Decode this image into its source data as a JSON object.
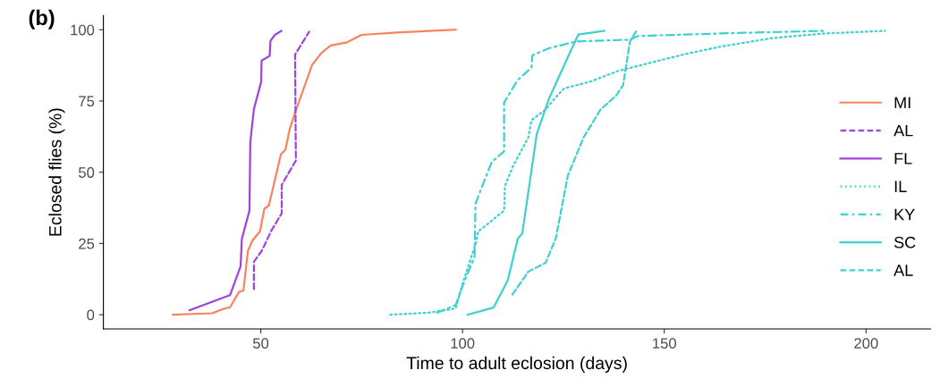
{
  "chart_data": {
    "type": "line",
    "title": "(b)",
    "xlabel": "Time to adult eclosion (days)",
    "ylabel": "Eclosed flies (%)",
    "xlim": [
      11,
      216
    ],
    "ylim": [
      -5,
      105
    ],
    "xticks": [
      50,
      100,
      150,
      200
    ],
    "yticks": [
      0,
      25,
      50,
      75,
      100
    ],
    "grid": false,
    "legend": "right",
    "marker": "none",
    "series": [
      {
        "name": "MI",
        "color": "#f8845f",
        "line_style": "solid",
        "x": [
          28.2,
          37.9,
          40.9,
          42.4,
          44.6,
          45.7,
          46.8,
          47.9,
          49.8,
          50.9,
          52,
          55,
          56.1,
          57.2,
          58.7,
          62.7,
          65,
          67.3,
          71.4,
          75,
          83.8,
          98.3
        ],
        "values": [
          0,
          0.5,
          2.1,
          2.6,
          8,
          8.5,
          22.3,
          26,
          29.2,
          37.2,
          38.3,
          56.3,
          57.9,
          65.3,
          71.7,
          87.6,
          91.8,
          94.5,
          95.6,
          98.2,
          99,
          100
        ]
      },
      {
        "name": "AL",
        "color": "#9d45dc",
        "line_style": "dashed",
        "x": [
          48.3,
          48.3,
          50.2,
          52.7,
          55.2,
          55.2,
          58.7,
          58.5,
          62
        ],
        "values": [
          9,
          18.6,
          22.3,
          29.7,
          35.6,
          45.6,
          54.1,
          91.3,
          99.3
        ]
      },
      {
        "name": "FL",
        "color": "#9d45dc",
        "line_style": "solid",
        "x": [
          32.4,
          42.4,
          45,
          45.3,
          47.2,
          47.4,
          48.3,
          50.1,
          50.2,
          52.2,
          52.4,
          53.5,
          55.1
        ],
        "values": [
          1.6,
          6.9,
          17,
          26.5,
          36.6,
          60.5,
          72.2,
          81.7,
          89.2,
          90.8,
          96.1,
          98.2,
          99.6
        ]
      },
      {
        "name": "IL",
        "color": "#3fd0d0",
        "line_style": "dotted",
        "x": [
          82.1,
          91.5,
          98.3,
          100,
          103.4,
          103.8,
          110.3,
          110.5,
          112.4,
          116.3,
          117.1,
          120.6,
          123.1,
          125.2,
          131.7,
          138.5,
          147.1,
          155.6,
          164.1,
          176.9,
          189.8,
          204.7
        ],
        "values": [
          0,
          0.7,
          2.2,
          10.8,
          25.5,
          29.1,
          36.5,
          45.1,
          51.8,
          62.2,
          68.3,
          72,
          76.3,
          79.4,
          81.8,
          85.5,
          88.6,
          91.6,
          94.1,
          97.1,
          98.7,
          99.6
        ]
      },
      {
        "name": "KY",
        "color": "#3fd0d0",
        "line_style": "dashdot",
        "x": [
          93.7,
          98.3,
          100.2,
          103,
          103.2,
          105.2,
          107.3,
          110.3,
          110.3,
          113.7,
          117.1,
          117.3,
          121.4,
          128.2,
          141.5,
          143.5,
          164.1,
          189.8
        ],
        "values": [
          0.7,
          3.4,
          10.8,
          20.4,
          38.9,
          46.3,
          53.7,
          57.3,
          74.5,
          82.4,
          86.7,
          91,
          93.5,
          95.9,
          96.5,
          97.8,
          98.7,
          99.6
        ]
      },
      {
        "name": "SC",
        "color": "#3fd0d0",
        "line_style": "solid",
        "x": [
          101.3,
          107.7,
          111.2,
          113.7,
          114.8,
          118.4,
          121.4,
          126.5,
          128.7,
          135.1
        ],
        "values": [
          0,
          2.5,
          12,
          26.7,
          28.5,
          63.4,
          75.7,
          91.6,
          98.3,
          99.6
        ]
      },
      {
        "name": "AL",
        "color": "#3fd0d0",
        "line_style": "dashed",
        "x": [
          112.4,
          116.3,
          120.6,
          123.1,
          126.1,
          130,
          134.2,
          138.1,
          139.8,
          141.5,
          143.1
        ],
        "values": [
          7.1,
          15.1,
          18.2,
          26.7,
          48.8,
          62.2,
          72,
          76.9,
          80.6,
          95.9,
          99.6
        ]
      }
    ]
  }
}
